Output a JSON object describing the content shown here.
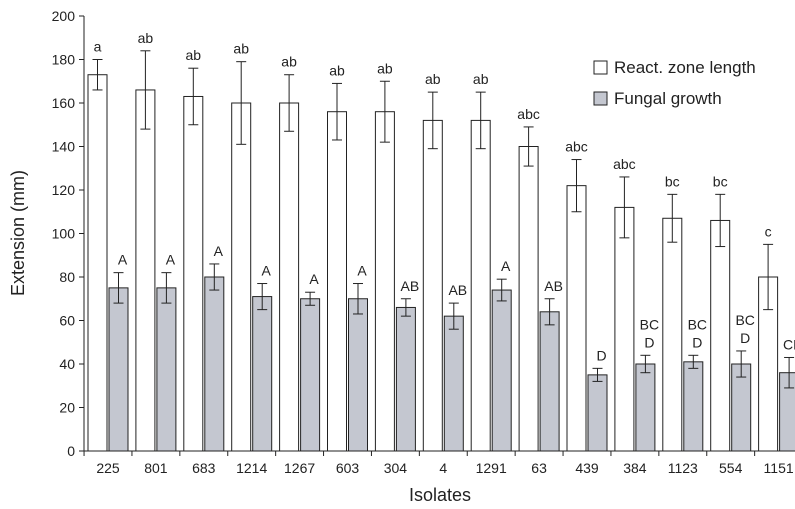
{
  "chart_data": {
    "type": "bar",
    "xlabel": "Isolates",
    "ylabel": "Extension (mm)",
    "ylim": [
      0,
      200
    ],
    "yticks": [
      0,
      20,
      40,
      60,
      80,
      100,
      120,
      140,
      160,
      180,
      200
    ],
    "grid": false,
    "legend_position": "top-right",
    "categories": [
      "225",
      "801",
      "683",
      "1214",
      "1267",
      "603",
      "304",
      "4",
      "1291",
      "63",
      "439",
      "384",
      "1123",
      "554",
      "1151"
    ],
    "series": [
      {
        "name": "React. zone length",
        "color": "#ffffff",
        "values": [
          173,
          166,
          163,
          160,
          160,
          156,
          156,
          152,
          152,
          140,
          122,
          112,
          107,
          106,
          80
        ],
        "errors": [
          7,
          18,
          13,
          19,
          13,
          13,
          14,
          13,
          13,
          9,
          12,
          14,
          11,
          12,
          15
        ],
        "labels": [
          "a",
          "ab",
          "ab",
          "ab",
          "ab",
          "ab",
          "ab",
          "ab",
          "ab",
          "abc",
          "abc",
          "abc",
          "bc",
          "bc",
          "c"
        ]
      },
      {
        "name": "Fungal growth",
        "color": "#c4c7d0",
        "values": [
          75,
          75,
          80,
          71,
          70,
          70,
          66,
          62,
          74,
          64,
          35,
          40,
          41,
          40,
          36
        ],
        "errors": [
          7,
          7,
          6,
          6,
          3,
          7,
          4,
          6,
          5,
          6,
          3,
          4,
          3,
          6,
          7
        ],
        "labels": [
          [
            "A"
          ],
          [
            "A"
          ],
          [
            "A"
          ],
          [
            "A"
          ],
          [
            "A"
          ],
          [
            "A"
          ],
          [
            "AB"
          ],
          [
            "AB"
          ],
          [
            "A"
          ],
          [
            "AB"
          ],
          [
            "D"
          ],
          [
            "BC",
            "D"
          ],
          [
            "BC",
            "D"
          ],
          [
            "BC",
            "D"
          ],
          [
            "CD"
          ]
        ]
      }
    ]
  }
}
